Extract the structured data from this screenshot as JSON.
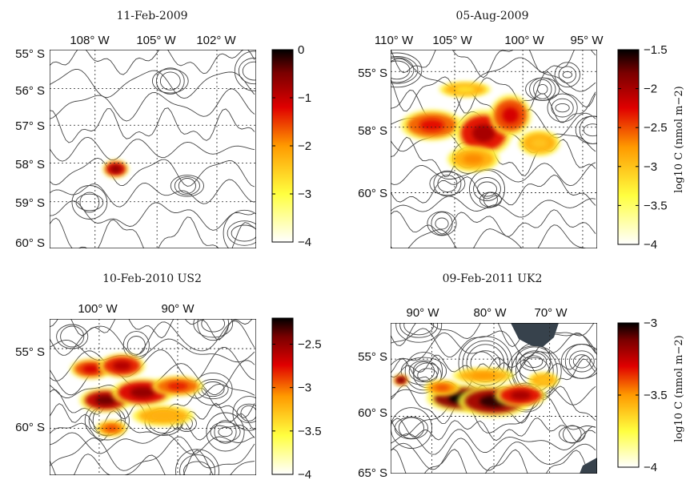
{
  "chart_data": [
    {
      "type": "heatmap",
      "title": "11-Feb-2009",
      "x_ticks": [
        "108° W",
        "105° W",
        "102° W"
      ],
      "y_ticks": [
        "55° S",
        "56° S",
        "57° S",
        "58° S",
        "59° S",
        "60° S"
      ],
      "colorbar": {
        "ticks": [
          "0",
          "−1",
          "−2",
          "−3",
          "−4"
        ],
        "range": [
          -4,
          0
        ]
      },
      "blobs": [
        {
          "cx": 0.32,
          "cy": 0.6,
          "rx": 0.05,
          "ry": 0.035,
          "value": -0.6
        }
      ]
    },
    {
      "type": "heatmap",
      "title": "05-Aug-2009",
      "x_ticks": [
        "110° W",
        "105° W",
        "100° W",
        "95° W"
      ],
      "y_ticks": [
        "55° S",
        "58° S",
        "60° S"
      ],
      "colorbar": {
        "ticks": [
          "−1.5",
          "−2",
          "−2.5",
          "−3",
          "−3.5",
          "−4"
        ],
        "range": [
          -4,
          -1.5
        ],
        "label": "log10 C (nmol m−2)"
      },
      "blobs": [
        {
          "cx": 0.2,
          "cy": 0.38,
          "rx": 0.12,
          "ry": 0.06,
          "value": -2.3
        },
        {
          "cx": 0.45,
          "cy": 0.42,
          "rx": 0.11,
          "ry": 0.09,
          "value": -2.0
        },
        {
          "cx": 0.58,
          "cy": 0.33,
          "rx": 0.08,
          "ry": 0.08,
          "value": -2.2
        },
        {
          "cx": 0.4,
          "cy": 0.55,
          "rx": 0.1,
          "ry": 0.05,
          "value": -2.7
        },
        {
          "cx": 0.72,
          "cy": 0.47,
          "rx": 0.08,
          "ry": 0.05,
          "value": -3.0
        },
        {
          "cx": 0.36,
          "cy": 0.2,
          "rx": 0.1,
          "ry": 0.03,
          "value": -3.2
        }
      ]
    },
    {
      "type": "heatmap",
      "title": "10-Feb-2010 US2",
      "x_ticks": [
        "100° W",
        "90° W"
      ],
      "y_ticks": [
        "55° S",
        "60° S"
      ],
      "colorbar": {
        "ticks": [
          "−2.5",
          "−3",
          "−3.5",
          "−4"
        ],
        "range": [
          -4,
          -2.2
        ]
      },
      "blobs": [
        {
          "cx": 0.2,
          "cy": 0.32,
          "rx": 0.08,
          "ry": 0.05,
          "value": -2.7
        },
        {
          "cx": 0.35,
          "cy": 0.3,
          "rx": 0.09,
          "ry": 0.06,
          "value": -2.6
        },
        {
          "cx": 0.27,
          "cy": 0.52,
          "rx": 0.1,
          "ry": 0.06,
          "value": -2.4
        },
        {
          "cx": 0.45,
          "cy": 0.47,
          "rx": 0.12,
          "ry": 0.07,
          "value": -2.5
        },
        {
          "cx": 0.62,
          "cy": 0.43,
          "rx": 0.1,
          "ry": 0.05,
          "value": -2.8
        },
        {
          "cx": 0.55,
          "cy": 0.62,
          "rx": 0.12,
          "ry": 0.05,
          "value": -3.2
        },
        {
          "cx": 0.3,
          "cy": 0.7,
          "rx": 0.06,
          "ry": 0.04,
          "value": -2.9
        }
      ]
    },
    {
      "type": "heatmap",
      "title": "09-Feb-2011 UK2",
      "x_ticks": [
        "90° W",
        "80° W",
        "70° W"
      ],
      "y_ticks": [
        "55° S",
        "60° S",
        "65° S"
      ],
      "colorbar": {
        "ticks": [
          "−3",
          "−3.5",
          "−4"
        ],
        "range": [
          -4,
          -3
        ],
        "label": "log10 C (nmol m−2)"
      },
      "blobs": [
        {
          "cx": 0.35,
          "cy": 0.5,
          "rx": 0.14,
          "ry": 0.07,
          "value": -3.0
        },
        {
          "cx": 0.5,
          "cy": 0.52,
          "rx": 0.14,
          "ry": 0.08,
          "value": -3.05
        },
        {
          "cx": 0.63,
          "cy": 0.48,
          "rx": 0.1,
          "ry": 0.06,
          "value": -3.2
        },
        {
          "cx": 0.45,
          "cy": 0.35,
          "rx": 0.12,
          "ry": 0.04,
          "value": -3.5
        },
        {
          "cx": 0.25,
          "cy": 0.43,
          "rx": 0.07,
          "ry": 0.04,
          "value": -3.4
        },
        {
          "cx": 0.74,
          "cy": 0.38,
          "rx": 0.06,
          "ry": 0.04,
          "value": -3.6
        },
        {
          "cx": 0.05,
          "cy": 0.38,
          "rx": 0.03,
          "ry": 0.03,
          "value": -3.1
        }
      ]
    }
  ]
}
